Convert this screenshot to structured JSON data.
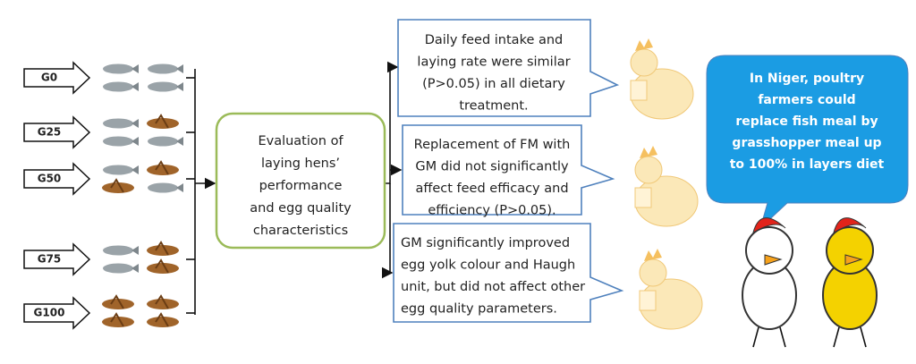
{
  "inputs": [
    {
      "label": "G0"
    },
    {
      "label": "G25"
    },
    {
      "label": "G50"
    },
    {
      "label": "G75"
    },
    {
      "label": "G100"
    }
  ],
  "center": {
    "lines": [
      "Evaluation of",
      "laying hens’",
      "performance",
      "and egg quality",
      "characteristics"
    ]
  },
  "findings": [
    {
      "lines": [
        "Daily feed intake and",
        "laying rate were similar",
        "(P>0.05) in all dietary",
        "treatment."
      ]
    },
    {
      "lines": [
        "Replacement of FM with",
        "GM did not significantly",
        "affect feed efficacy and",
        "efficiency (P>0.05)."
      ]
    },
    {
      "lines": [
        "GM significantly improved",
        "egg yolk colour and Haugh",
        "unit, but did not affect other",
        "egg quality parameters."
      ]
    }
  ],
  "conclusion": {
    "lines": [
      "In Niger, poultry",
      "farmers could",
      "replace fish meal by",
      "grasshopper meal up",
      "to 100% in layers diet"
    ]
  }
}
